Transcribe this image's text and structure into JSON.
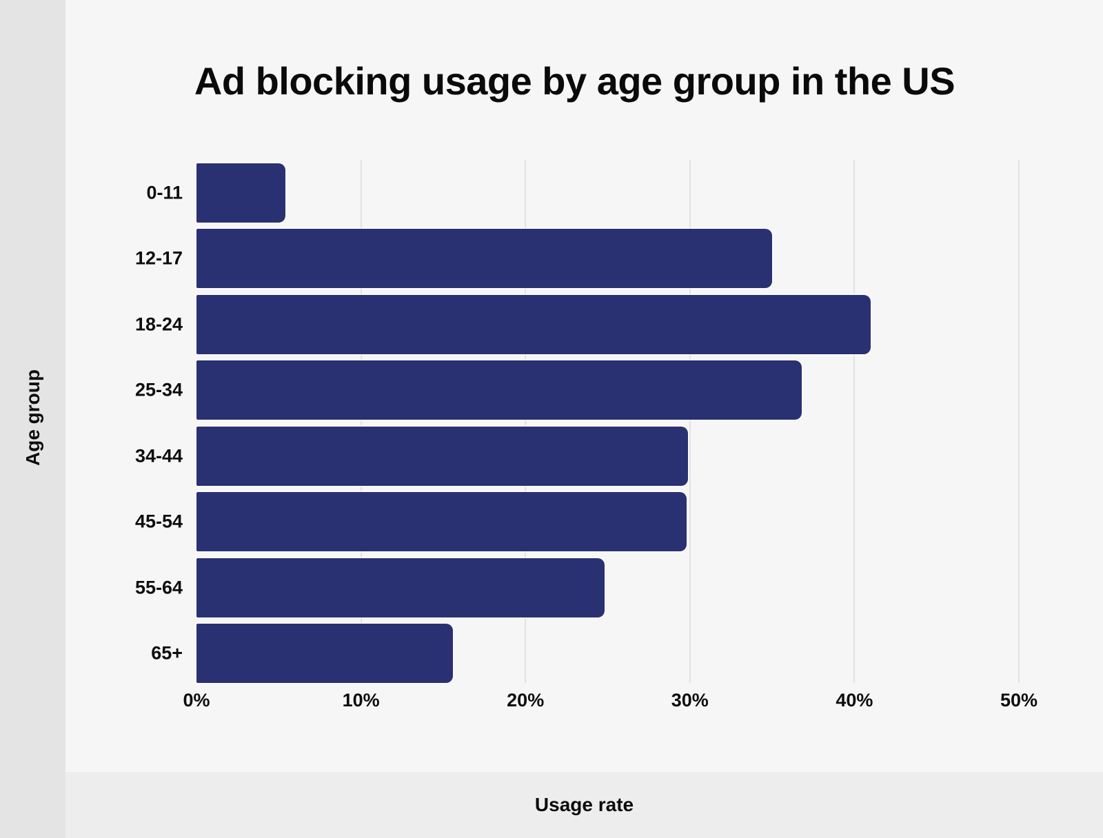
{
  "theme": {
    "page_background": "#f5f6f5",
    "left_strip_color": "#e4e4e4",
    "bottom_band_color": "#ededed",
    "bar_color": "#293173",
    "gridline_color": "#e2e2e2",
    "text_color": "#0d0d0d"
  },
  "chart_data": {
    "type": "bar",
    "orientation": "horizontal",
    "title": "Ad blocking usage by age group in the US",
    "xlabel": "Usage rate",
    "ylabel": "Age group",
    "categories": [
      "0-11",
      "12-17",
      "18-24",
      "25-34",
      "34-44",
      "45-54",
      "55-64",
      "65+"
    ],
    "values": [
      5.4,
      35.0,
      41.0,
      36.8,
      29.9,
      29.8,
      24.8,
      15.6
    ],
    "unit": "%",
    "xlim": [
      0,
      50
    ],
    "x_ticks": [
      {
        "value": 0,
        "label": "0%"
      },
      {
        "value": 10,
        "label": "10%"
      },
      {
        "value": 20,
        "label": "20%"
      },
      {
        "value": 30,
        "label": "30%"
      },
      {
        "value": 40,
        "label": "40%"
      },
      {
        "value": 50,
        "label": "50%"
      }
    ],
    "grid": "vertical",
    "legend": false
  }
}
